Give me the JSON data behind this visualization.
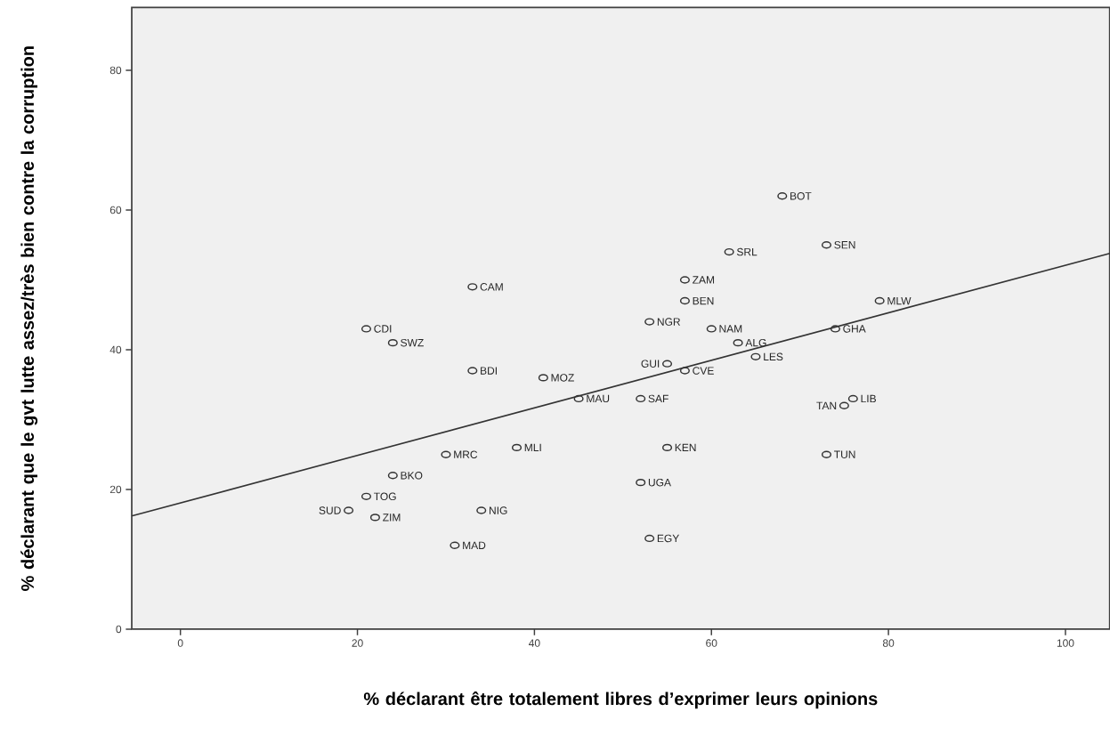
{
  "chart_data": {
    "type": "scatter",
    "xlabel": "% déclarant être totalement libres d’exprimer leurs opinions",
    "ylabel": "% déclarant que le gvt lutte assez/très bien contre la corruption",
    "xlim": [
      -5.5,
      105
    ],
    "ylim": [
      0,
      89
    ],
    "xticks": [
      0,
      20,
      40,
      60,
      80,
      100
    ],
    "yticks": [
      0,
      20,
      40,
      60,
      80
    ],
    "marker": "circle",
    "series": [
      {
        "type": "scatter",
        "color": "#333333",
        "x": [
          68,
          73,
          62,
          57,
          33,
          57,
          79,
          53,
          21,
          60,
          74,
          24,
          63,
          65,
          55,
          33,
          57,
          41,
          45,
          52,
          76,
          75,
          38,
          55,
          30,
          73,
          24,
          52,
          21,
          19,
          34,
          22,
          53,
          31
        ],
        "values": [
          62,
          55,
          54,
          50,
          49,
          47,
          47,
          44,
          43,
          43,
          43,
          41,
          41,
          39,
          38,
          37,
          37,
          36,
          33,
          33,
          33,
          32,
          26,
          26,
          25,
          25,
          22,
          21,
          19,
          17,
          17,
          16,
          13,
          12
        ]
      },
      {
        "type": "line",
        "color": "#333333",
        "marker": "none",
        "x": [
          -5.5,
          105
        ],
        "values": [
          16.2,
          53.8
        ]
      }
    ],
    "annotations": [
      {
        "text": "BOT",
        "x": 68,
        "y": 62
      },
      {
        "text": "SEN",
        "x": 73,
        "y": 55
      },
      {
        "text": "SRL",
        "x": 62,
        "y": 54
      },
      {
        "text": "ZAM",
        "x": 57,
        "y": 50
      },
      {
        "text": "CAM",
        "x": 33,
        "y": 49
      },
      {
        "text": "BEN",
        "x": 57,
        "y": 47
      },
      {
        "text": "MLW",
        "x": 79,
        "y": 47
      },
      {
        "text": "NGR",
        "x": 53,
        "y": 44
      },
      {
        "text": "CDI",
        "x": 21,
        "y": 43
      },
      {
        "text": "NAM",
        "x": 60,
        "y": 43
      },
      {
        "text": "GHA",
        "x": 74,
        "y": 43
      },
      {
        "text": "SWZ",
        "x": 24,
        "y": 41
      },
      {
        "text": "ALG",
        "x": 63,
        "y": 41
      },
      {
        "text": "LES",
        "x": 65,
        "y": 39
      },
      {
        "text": "GUI",
        "x": 55,
        "y": 38
      },
      {
        "text": "BDI",
        "x": 33,
        "y": 37
      },
      {
        "text": "CVE",
        "x": 57,
        "y": 37
      },
      {
        "text": "MOZ",
        "x": 41,
        "y": 36
      },
      {
        "text": "MAU",
        "x": 45,
        "y": 33
      },
      {
        "text": "SAF",
        "x": 52,
        "y": 33
      },
      {
        "text": "LIB",
        "x": 76,
        "y": 33
      },
      {
        "text": "TAN",
        "x": 75,
        "y": 32
      },
      {
        "text": "MLI",
        "x": 38,
        "y": 26
      },
      {
        "text": "KEN",
        "x": 55,
        "y": 26
      },
      {
        "text": "MRC",
        "x": 30,
        "y": 25
      },
      {
        "text": "TUN",
        "x": 73,
        "y": 25
      },
      {
        "text": "BKO",
        "x": 24,
        "y": 22
      },
      {
        "text": "UGA",
        "x": 52,
        "y": 21
      },
      {
        "text": "TOG",
        "x": 21,
        "y": 19
      },
      {
        "text": "SUD",
        "x": 19,
        "y": 17
      },
      {
        "text": "NIG",
        "x": 34,
        "y": 17
      },
      {
        "text": "ZIM",
        "x": 22,
        "y": 16
      },
      {
        "text": "EGY",
        "x": 53,
        "y": 13
      },
      {
        "text": "MAD",
        "x": 31,
        "y": 12
      }
    ]
  }
}
